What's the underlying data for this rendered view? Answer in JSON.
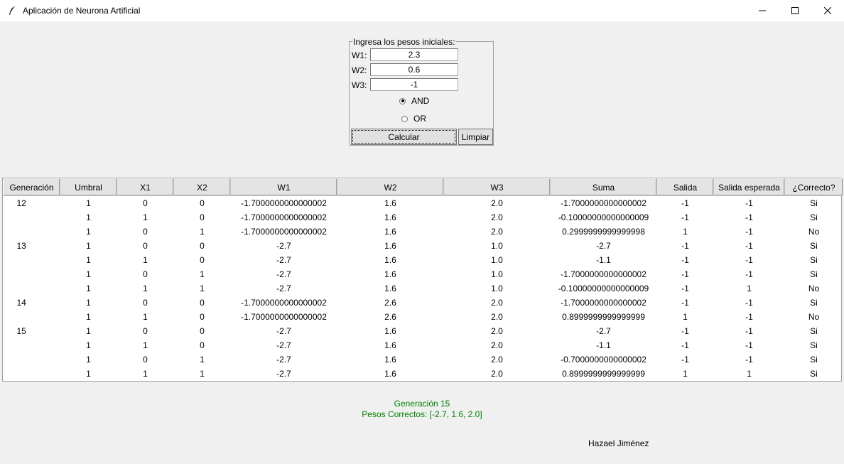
{
  "window": {
    "title": "Aplicación de Neurona Artificial"
  },
  "form": {
    "legend": "Ingresa los pesos iniciales:",
    "w1_label": "W1:",
    "w1_value": "2.3",
    "w2_label": "W2:",
    "w2_value": "0.6",
    "w3_label": "W3:",
    "w3_value": "-1",
    "radio_and": "AND",
    "radio_or": "OR",
    "selected": "AND",
    "calc_label": "Calcular",
    "clear_label": "Limpiar"
  },
  "table": {
    "headers": [
      "Generación",
      "Umbral",
      "X1",
      "X2",
      "W1",
      "W2",
      "W3",
      "Suma",
      "Salida",
      "Salida esperada",
      "¿Correcto?"
    ],
    "rows": [
      [
        "12",
        "1",
        "0",
        "0",
        "-1.7000000000000002",
        "1.6",
        "2.0",
        "-1.7000000000000002",
        "-1",
        "-1",
        "Si"
      ],
      [
        "",
        "1",
        "1",
        "0",
        "-1.7000000000000002",
        "1.6",
        "2.0",
        "-0.10000000000000009",
        "-1",
        "-1",
        "Si"
      ],
      [
        "",
        "1",
        "0",
        "1",
        "-1.7000000000000002",
        "1.6",
        "2.0",
        "0.2999999999999998",
        "1",
        "-1",
        "No"
      ],
      [
        "13",
        "1",
        "0",
        "0",
        "-2.7",
        "1.6",
        "1.0",
        "-2.7",
        "-1",
        "-1",
        "Si"
      ],
      [
        "",
        "1",
        "1",
        "0",
        "-2.7",
        "1.6",
        "1.0",
        "-1.1",
        "-1",
        "-1",
        "Si"
      ],
      [
        "",
        "1",
        "0",
        "1",
        "-2.7",
        "1.6",
        "1.0",
        "-1.7000000000000002",
        "-1",
        "-1",
        "Si"
      ],
      [
        "",
        "1",
        "1",
        "1",
        "-2.7",
        "1.6",
        "1.0",
        "-0.10000000000000009",
        "-1",
        "1",
        "No"
      ],
      [
        "14",
        "1",
        "0",
        "0",
        "-1.7000000000000002",
        "2.6",
        "2.0",
        "-1.7000000000000002",
        "-1",
        "-1",
        "Si"
      ],
      [
        "",
        "1",
        "1",
        "0",
        "-1.7000000000000002",
        "2.6",
        "2.0",
        "0.8999999999999999",
        "1",
        "-1",
        "No"
      ],
      [
        "15",
        "1",
        "0",
        "0",
        "-2.7",
        "1.6",
        "2.0",
        "-2.7",
        "-1",
        "-1",
        "Si"
      ],
      [
        "",
        "1",
        "1",
        "0",
        "-2.7",
        "1.6",
        "2.0",
        "-1.1",
        "-1",
        "-1",
        "Si"
      ],
      [
        "",
        "1",
        "0",
        "1",
        "-2.7",
        "1.6",
        "2.0",
        "-0.7000000000000002",
        "-1",
        "-1",
        "Si"
      ],
      [
        "",
        "1",
        "1",
        "1",
        "-2.7",
        "1.6",
        "2.0",
        "0.8999999999999999",
        "1",
        "1",
        "Si"
      ]
    ]
  },
  "result": {
    "generation": "Generación 15",
    "weights": "Pesos Correctos: [-2.7, 1.6, 2.0]"
  },
  "author": "Hazael Jiménez",
  "colors": {
    "result_text": "#008000",
    "header_bg": "#e4e4e4",
    "window_bg": "#f0f0f0"
  }
}
